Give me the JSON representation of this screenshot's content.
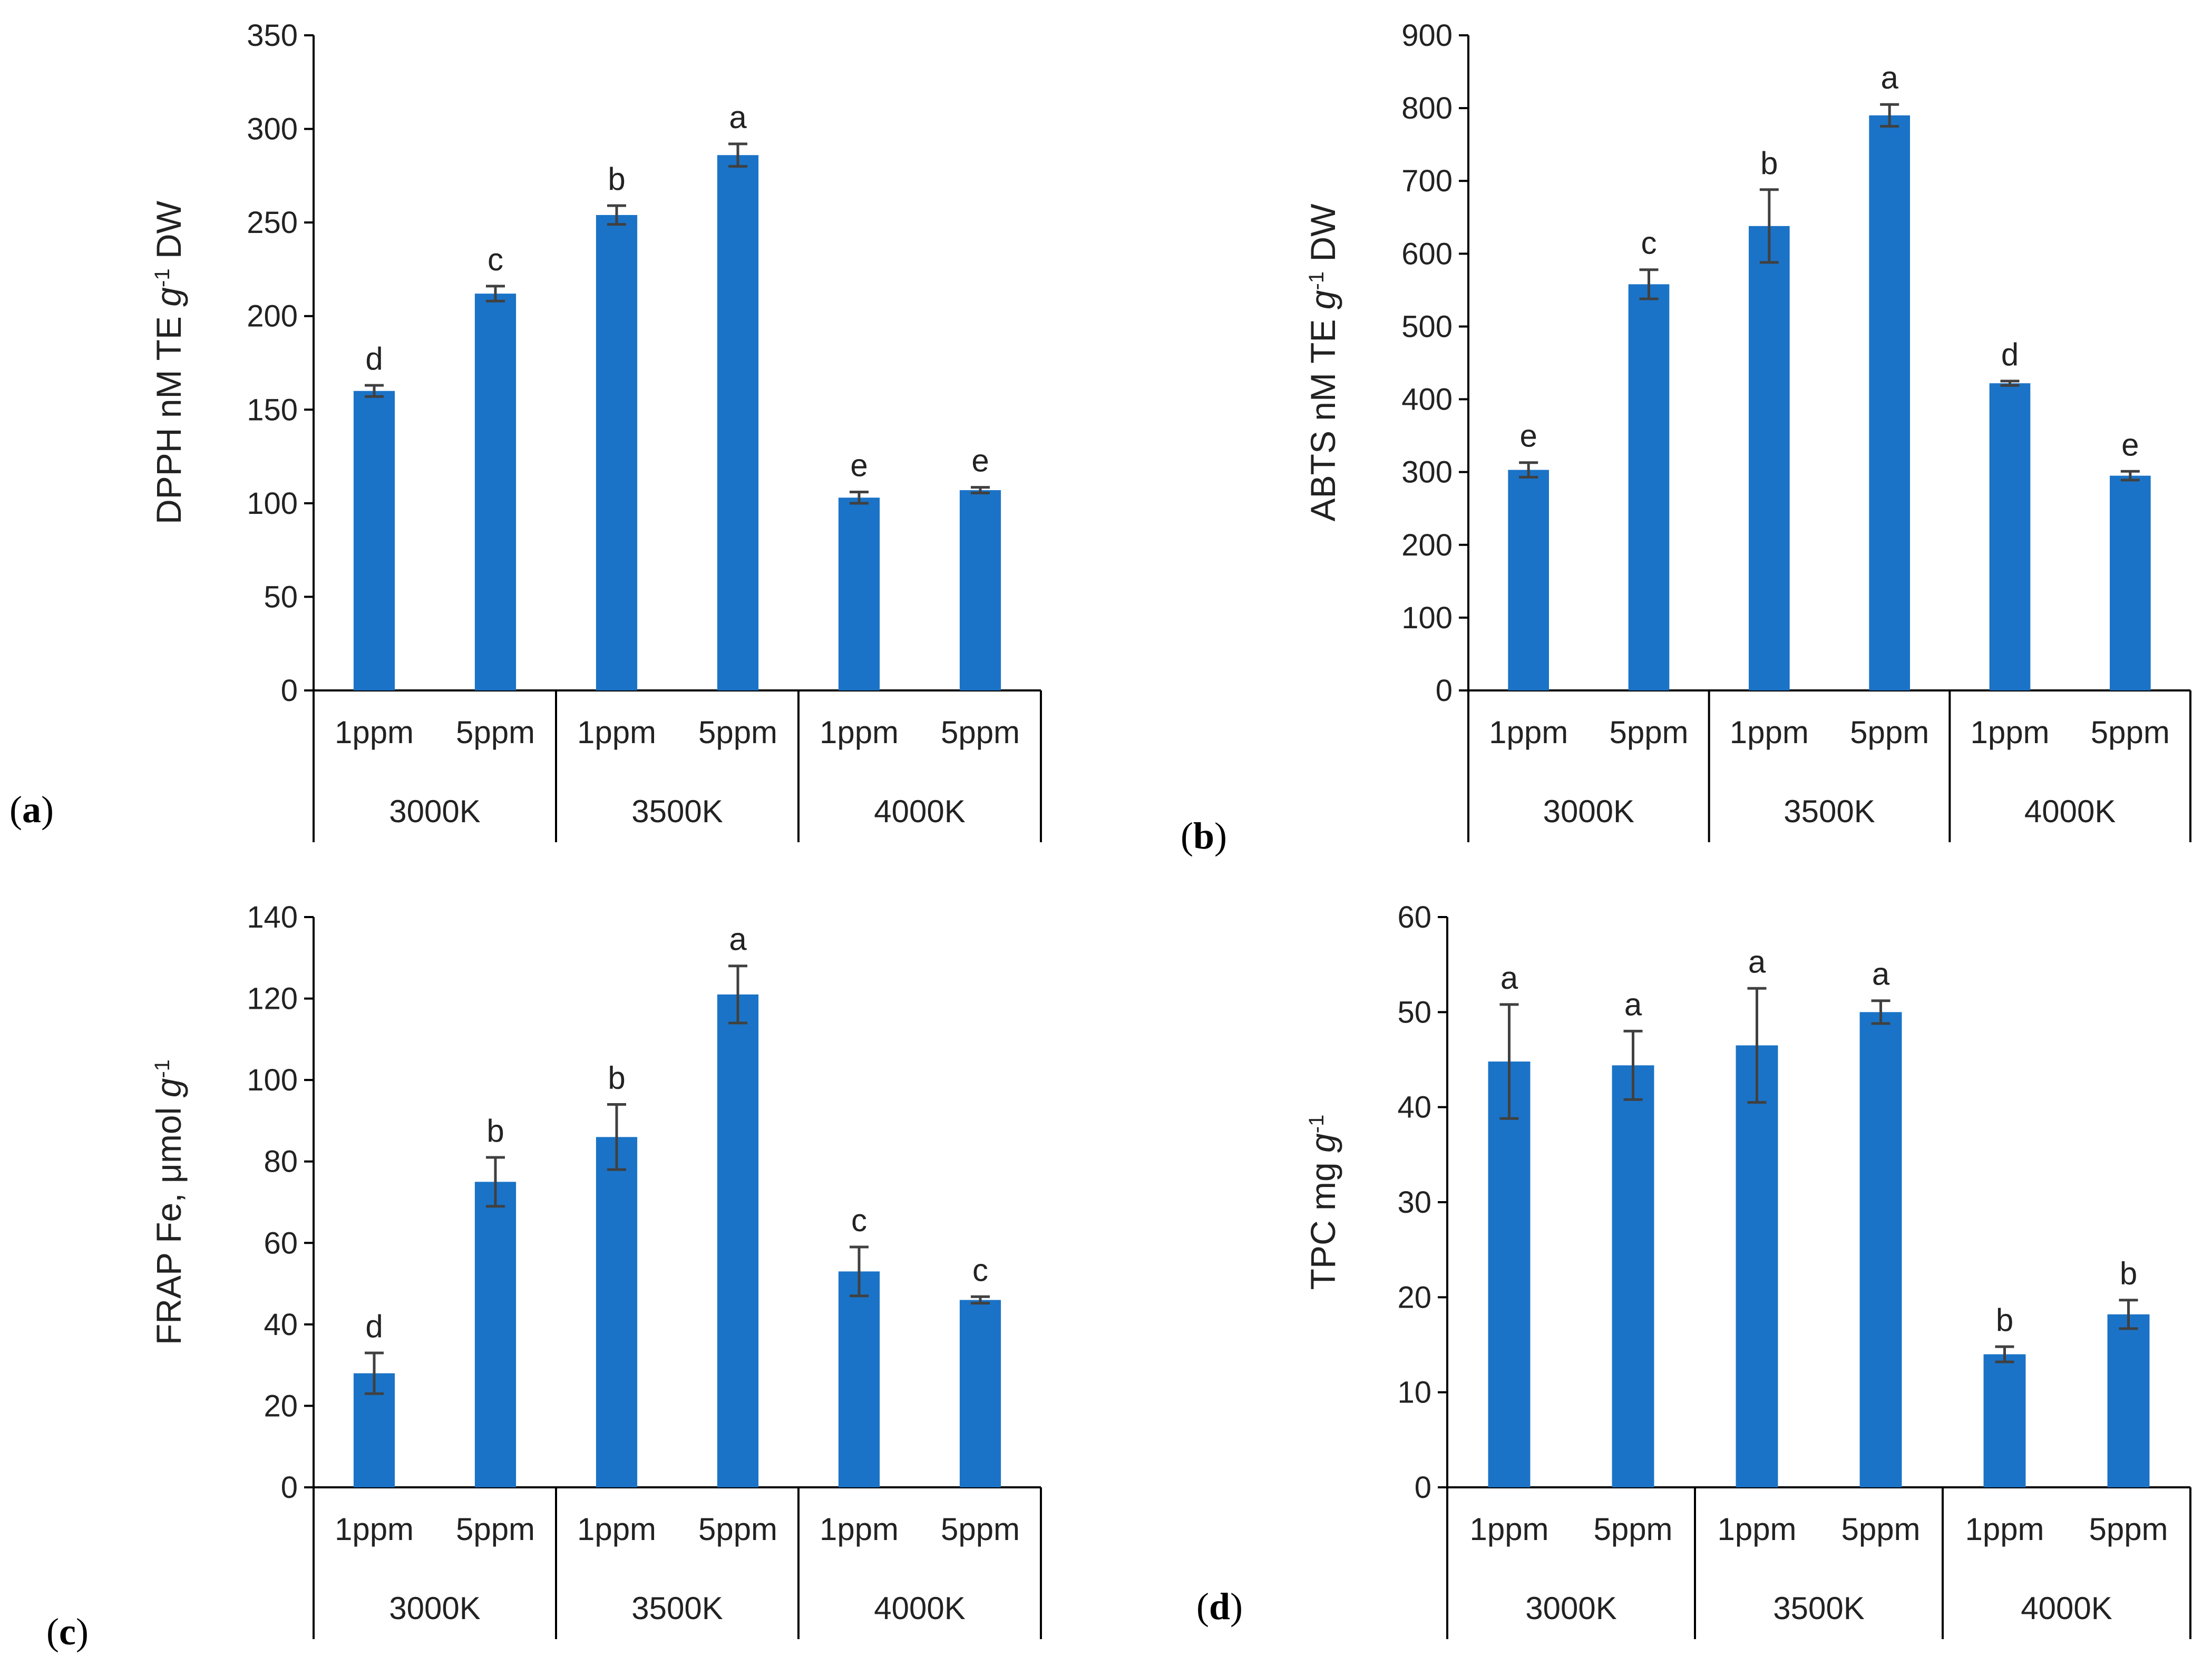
{
  "colors": {
    "bar": "#1a73c7",
    "error_bar": "#404040",
    "axis": "#000000",
    "text": "#222222"
  },
  "chart_data": [
    {
      "panel": "(a)",
      "type": "bar",
      "groups": [
        "3000K",
        "3500K",
        "4000K"
      ],
      "categories": [
        "1ppm",
        "5ppm",
        "1ppm",
        "5ppm",
        "1ppm",
        "5ppm"
      ],
      "values": [
        160,
        212,
        254,
        286,
        103,
        107
      ],
      "errors": [
        3,
        4,
        5,
        6,
        3,
        1.5
      ],
      "letters": [
        "d",
        "c",
        "b",
        "a",
        "e",
        "e"
      ],
      "ylabel_main": "DPPH nM TE ",
      "ylabel_unit": "g",
      "ylabel_exp": "-1",
      "ylabel_tail": " DW",
      "ylim": [
        0,
        350
      ],
      "yticks": [
        0,
        50,
        100,
        150,
        200,
        250,
        300,
        350
      ],
      "grid": false
    },
    {
      "panel": "(b)",
      "type": "bar",
      "groups": [
        "3000K",
        "3500K",
        "4000K"
      ],
      "categories": [
        "1ppm",
        "5ppm",
        "1ppm",
        "5ppm",
        "1ppm",
        "5ppm"
      ],
      "values": [
        303,
        558,
        638,
        790,
        422,
        295
      ],
      "errors": [
        10,
        20,
        50,
        15,
        3,
        6
      ],
      "letters": [
        "e",
        "c",
        "b",
        "a",
        "d",
        "e"
      ],
      "ylabel_main": "ABTS nM TE ",
      "ylabel_unit": "g",
      "ylabel_exp": "-1",
      "ylabel_tail": " DW",
      "ylim": [
        0,
        900
      ],
      "yticks": [
        0,
        100,
        200,
        300,
        400,
        500,
        600,
        700,
        800,
        900
      ],
      "grid": false
    },
    {
      "panel": "(c)",
      "type": "bar",
      "groups": [
        "3000K",
        "3500K",
        "4000K"
      ],
      "categories": [
        "1ppm",
        "5ppm",
        "1ppm",
        "5ppm",
        "1ppm",
        "5ppm"
      ],
      "values": [
        28,
        75,
        86,
        121,
        53,
        46
      ],
      "errors": [
        5,
        6,
        8,
        7,
        6,
        0.8
      ],
      "letters": [
        "d",
        "b",
        "b",
        "a",
        "c",
        "c"
      ],
      "ylabel_main": "FRAP Fe, μmol ",
      "ylabel_unit": "g",
      "ylabel_exp": "-1",
      "ylabel_tail": "",
      "ylim": [
        0,
        140
      ],
      "yticks": [
        0,
        20,
        40,
        60,
        80,
        100,
        120,
        140
      ],
      "grid": false
    },
    {
      "panel": "(d)",
      "type": "bar",
      "groups": [
        "3000K",
        "3500K",
        "4000K"
      ],
      "categories": [
        "1ppm",
        "5ppm",
        "1ppm",
        "5ppm",
        "1ppm",
        "5ppm"
      ],
      "values": [
        44.8,
        44.4,
        46.5,
        50,
        14,
        18.2
      ],
      "errors": [
        6,
        3.6,
        6,
        1.2,
        0.8,
        1.5
      ],
      "letters": [
        "a",
        "a",
        "a",
        "a",
        "b",
        "b"
      ],
      "ylabel_main": "TPC mg ",
      "ylabel_unit": "g",
      "ylabel_exp": "-1",
      "ylabel_tail": "",
      "ylim": [
        0,
        60
      ],
      "yticks": [
        0,
        10,
        20,
        30,
        40,
        50,
        60
      ],
      "grid": false
    }
  ]
}
